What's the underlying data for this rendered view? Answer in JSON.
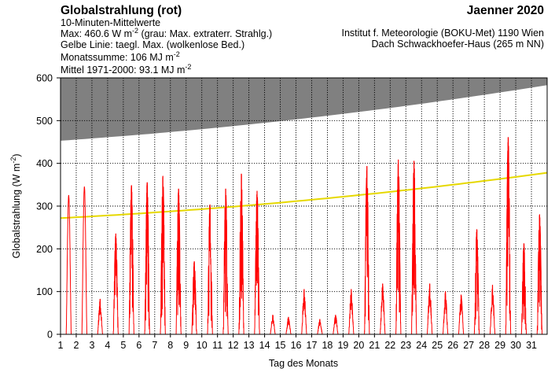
{
  "header": {
    "title": "Globalstrahlung (rot)",
    "subtitle": "10-Minuten-Mittelwerte",
    "max_prefix": "Max:  460.6 W m",
    "max_exp": "-2",
    "max_suffix": "  (grau: Max. extraterr. Strahlg.)",
    "yellow_line": "Gelbe Linie: taegl. Max. (wolkenlose Bed.)",
    "monthly_prefix": "Monatssumme:  106 MJ m",
    "monthly_exp": "-2",
    "mean_prefix": "Mittel 1971-2000:   93.1 MJ m",
    "mean_exp": "-2",
    "month": "Jaenner 2020",
    "institute": "Institut f. Meteorologie (BOKU-Met) 1190 Wien",
    "location": "Dach Schwackhoefer-Haus (265 m NN)"
  },
  "chart_data": {
    "type": "line",
    "xlabel": "Tag des Monats",
    "ylabel_prefix": "Globalstrahlung (W m",
    "ylabel_exp": "-2",
    "ylabel_suffix": ")",
    "xlim": [
      1,
      32
    ],
    "ylim": [
      0,
      600
    ],
    "yticks": [
      0,
      100,
      200,
      300,
      400,
      500,
      600
    ],
    "xticks": [
      "1",
      "2",
      "3",
      "4",
      "5",
      "6",
      "7",
      "8",
      "9",
      "10",
      "11",
      "12",
      "13",
      "14",
      "15",
      "16",
      "17",
      "18",
      "19",
      "20",
      "21",
      "22",
      "23",
      "24",
      "25",
      "26",
      "27",
      "28",
      "29",
      "30",
      "31"
    ],
    "grid": "dashed vertical at each day",
    "colors": {
      "measured": "#ff0000",
      "clear_sky_max": "#e6d800",
      "extraterrestrial_max": "#808080",
      "grid": "#000000"
    },
    "extraterrestrial_max_start": 453,
    "extraterrestrial_max_end": 583,
    "clear_sky_max_start": 272,
    "clear_sky_max_end": 378,
    "daily_peaks": [
      {
        "day": 1,
        "peak": 325,
        "shape": "sunny"
      },
      {
        "day": 2,
        "peak": 345,
        "shape": "sunny"
      },
      {
        "day": 3,
        "peak": 82,
        "shape": "cloudy"
      },
      {
        "day": 4,
        "peak": 235,
        "shape": "broken"
      },
      {
        "day": 5,
        "peak": 348,
        "shape": "broken"
      },
      {
        "day": 6,
        "peak": 355,
        "shape": "broken"
      },
      {
        "day": 7,
        "peak": 370,
        "shape": "broken"
      },
      {
        "day": 8,
        "peak": 340,
        "shape": "broken"
      },
      {
        "day": 9,
        "peak": 170,
        "shape": "broken"
      },
      {
        "day": 10,
        "peak": 303,
        "shape": "broken"
      },
      {
        "day": 11,
        "peak": 340,
        "shape": "broken"
      },
      {
        "day": 12,
        "peak": 375,
        "shape": "broken"
      },
      {
        "day": 13,
        "peak": 335,
        "shape": "broken"
      },
      {
        "day": 14,
        "peak": 45,
        "shape": "cloudy"
      },
      {
        "day": 15,
        "peak": 40,
        "shape": "cloudy"
      },
      {
        "day": 16,
        "peak": 105,
        "shape": "cloudy"
      },
      {
        "day": 17,
        "peak": 35,
        "shape": "cloudy"
      },
      {
        "day": 18,
        "peak": 45,
        "shape": "cloudy"
      },
      {
        "day": 19,
        "peak": 105,
        "shape": "cloudy"
      },
      {
        "day": 20,
        "peak": 393,
        "shape": "broken"
      },
      {
        "day": 21,
        "peak": 118,
        "shape": "cloudy"
      },
      {
        "day": 22,
        "peak": 408,
        "shape": "broken"
      },
      {
        "day": 23,
        "peak": 405,
        "shape": "broken"
      },
      {
        "day": 24,
        "peak": 118,
        "shape": "cloudy"
      },
      {
        "day": 25,
        "peak": 100,
        "shape": "cloudy"
      },
      {
        "day": 26,
        "peak": 92,
        "shape": "cloudy"
      },
      {
        "day": 27,
        "peak": 245,
        "shape": "broken"
      },
      {
        "day": 28,
        "peak": 115,
        "shape": "cloudy"
      },
      {
        "day": 29,
        "peak": 460.6,
        "shape": "broken"
      },
      {
        "day": 30,
        "peak": 212,
        "shape": "broken"
      },
      {
        "day": 31,
        "peak": 280,
        "shape": "broken"
      }
    ]
  }
}
